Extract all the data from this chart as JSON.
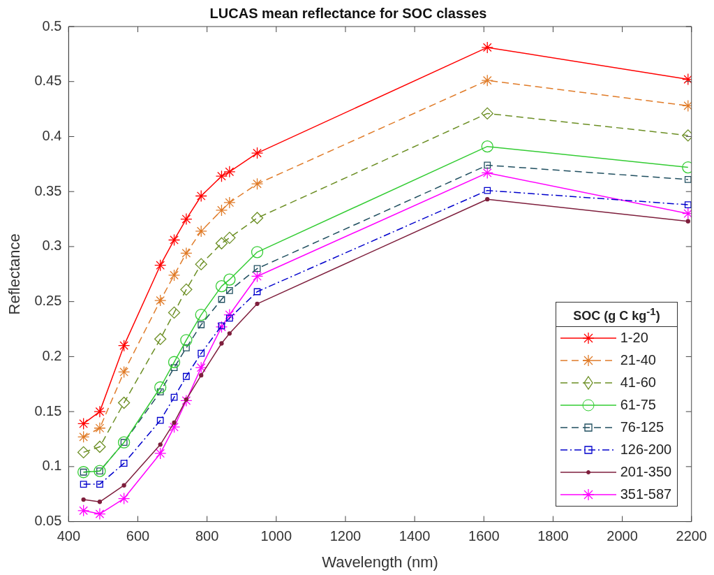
{
  "chart_data": {
    "type": "line",
    "title": "LUCAS mean reflectance for SOC classes",
    "xlabel": "Wavelength (nm)",
    "ylabel": "Reflectance",
    "legend_title": "SOC (g C kg$^{-1}$)",
    "legend": "bottom right",
    "grid": false,
    "x": [
      443,
      490,
      560,
      665,
      705,
      740,
      783,
      842,
      865,
      945,
      1610,
      2190
    ],
    "xlim": [
      400,
      2200
    ],
    "xticks": [
      400,
      600,
      800,
      1000,
      1200,
      1400,
      1600,
      1800,
      2000,
      2200
    ],
    "ylim": [
      0.05,
      0.5
    ],
    "yticks": [
      0.05,
      0.1,
      0.15,
      0.2,
      0.25,
      0.3,
      0.35,
      0.4,
      0.45,
      0.5
    ],
    "series": [
      {
        "name": "1-20",
        "color": "#ff0000",
        "marker": "cross",
        "line_style": "solid",
        "values": [
          0.139,
          0.15,
          0.21,
          0.283,
          0.306,
          0.325,
          0.346,
          0.364,
          0.368,
          0.385,
          0.481,
          0.452
        ]
      },
      {
        "name": "21-40",
        "color": "#e07b28",
        "marker": "cross",
        "line_style": "dashed",
        "values": [
          0.127,
          0.135,
          0.186,
          0.251,
          0.274,
          0.294,
          0.314,
          0.333,
          0.34,
          0.357,
          0.451,
          0.428
        ]
      },
      {
        "name": "41-60",
        "color": "#6b8e23",
        "marker": "diamond",
        "line_style": "dashed",
        "values": [
          0.113,
          0.118,
          0.158,
          0.216,
          0.24,
          0.261,
          0.284,
          0.303,
          0.308,
          0.326,
          0.421,
          0.401
        ]
      },
      {
        "name": "61-75",
        "color": "#33cc33",
        "marker": "circle",
        "line_style": "solid",
        "values": [
          0.095,
          0.096,
          0.122,
          0.172,
          0.195,
          0.215,
          0.238,
          0.264,
          0.27,
          0.295,
          0.391,
          0.372
        ]
      },
      {
        "name": "76-125",
        "color": "#1f4e5f",
        "marker": "square",
        "line_style": "dashed",
        "values": [
          0.095,
          0.096,
          0.122,
          0.168,
          0.19,
          0.208,
          0.229,
          0.252,
          0.26,
          0.28,
          0.374,
          0.361
        ]
      },
      {
        "name": "126-200",
        "color": "#0000cc",
        "marker": "square",
        "line_style": "dashdot",
        "values": [
          0.084,
          0.084,
          0.103,
          0.142,
          0.163,
          0.182,
          0.203,
          0.228,
          0.235,
          0.259,
          0.351,
          0.338
        ]
      },
      {
        "name": "201-350",
        "color": "#7e1e3c",
        "marker": "dot",
        "line_style": "solid",
        "values": [
          0.07,
          0.068,
          0.083,
          0.12,
          0.14,
          0.161,
          0.183,
          0.212,
          0.221,
          0.248,
          0.343,
          0.323
        ]
      },
      {
        "name": "351-587",
        "color": "#ff00ff",
        "marker": "cross",
        "line_style": "solid",
        "values": [
          0.06,
          0.057,
          0.071,
          0.112,
          0.136,
          0.16,
          0.19,
          0.227,
          0.238,
          0.273,
          0.367,
          0.33
        ]
      }
    ]
  }
}
